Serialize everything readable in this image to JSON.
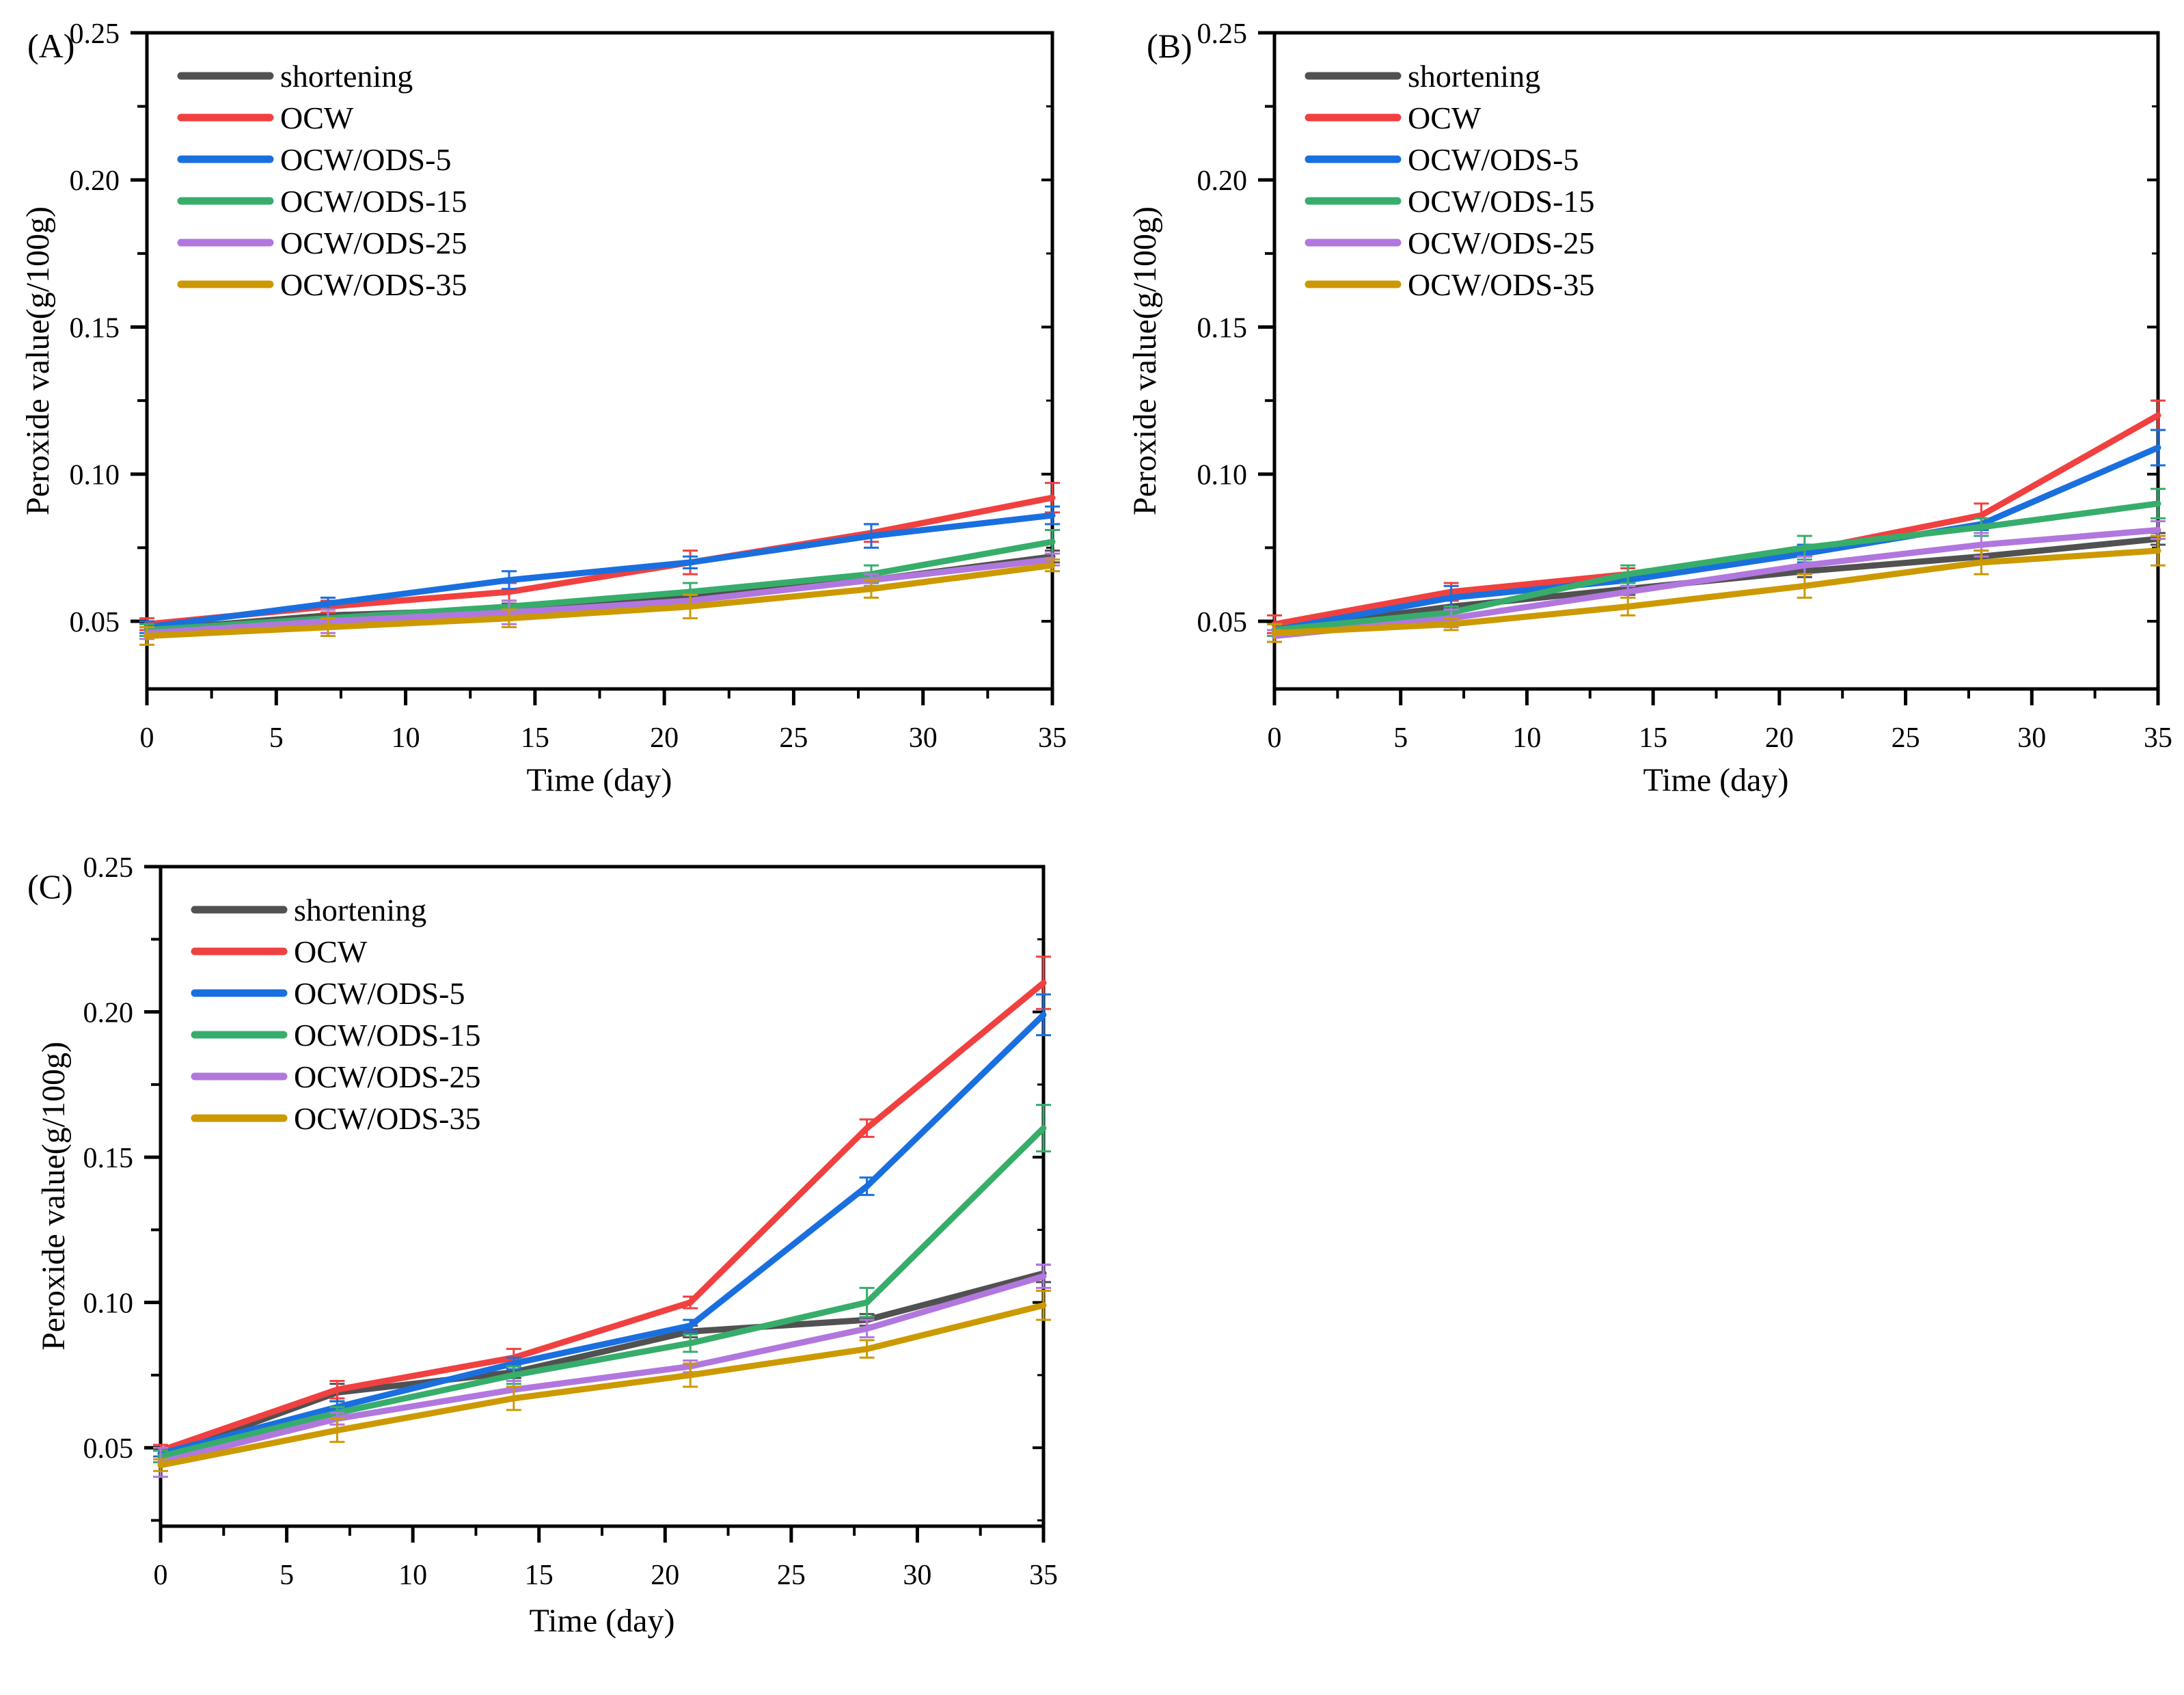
{
  "figure": {
    "background": "#ffffff",
    "x_axis_label": "Time (day)",
    "y_axis_label": "Peroxide value(g/100g)",
    "series_names": [
      "shortening",
      "OCW",
      "OCW/ODS-5",
      "OCW/ODS-15",
      "OCW/ODS-25",
      "OCW/ODS-35"
    ],
    "colors": {
      "shortening": "#515151",
      "OCW": "#F14040",
      "OCW/ODS-5": "#1A6FDF",
      "OCW/ODS-15": "#37AD6B",
      "OCW/ODS-25": "#B177DE",
      "OCW/ODS-35": "#CC9900"
    },
    "axis_color": "#000000",
    "tick_label_format": "0.00"
  },
  "chart_data": [
    {
      "type": "line",
      "panel": "(A)",
      "xlabel": "Time (day)",
      "ylabel": "Peroxide value(g/100g)",
      "x": [
        0,
        7,
        14,
        21,
        28,
        35
      ],
      "xlim": [
        0,
        35
      ],
      "ylim": [
        0.027,
        0.25
      ],
      "xticks": [
        0,
        5,
        10,
        15,
        20,
        25,
        30,
        35
      ],
      "yticks": [
        0.05,
        0.1,
        0.15,
        0.2,
        0.25
      ],
      "ytick_labels": [
        "0.05",
        "0.10",
        "0.15",
        "0.20",
        "0.25"
      ],
      "grid": false,
      "legend_position": "top-left",
      "series": [
        {
          "name": "shortening",
          "color": "#515151",
          "values": [
            0.047,
            0.052,
            0.054,
            0.058,
            0.064,
            0.072
          ],
          "errors": [
            0.002,
            0.002,
            0.002,
            0.002,
            0.002,
            0.002
          ]
        },
        {
          "name": "OCW",
          "color": "#F14040",
          "values": [
            0.049,
            0.055,
            0.06,
            0.07,
            0.08,
            0.092
          ],
          "errors": [
            0.002,
            0.002,
            0.003,
            0.004,
            0.003,
            0.005
          ]
        },
        {
          "name": "OCW/ODS-5",
          "color": "#1A6FDF",
          "values": [
            0.048,
            0.056,
            0.064,
            0.07,
            0.079,
            0.086
          ],
          "errors": [
            0.002,
            0.002,
            0.003,
            0.002,
            0.004,
            0.003
          ]
        },
        {
          "name": "OCW/ODS-15",
          "color": "#37AD6B",
          "values": [
            0.047,
            0.051,
            0.055,
            0.06,
            0.066,
            0.077
          ],
          "errors": [
            0.002,
            0.003,
            0.002,
            0.003,
            0.003,
            0.004
          ]
        },
        {
          "name": "OCW/ODS-25",
          "color": "#B177DE",
          "values": [
            0.046,
            0.05,
            0.053,
            0.057,
            0.064,
            0.071
          ],
          "errors": [
            0.002,
            0.004,
            0.004,
            0.002,
            0.002,
            0.002
          ]
        },
        {
          "name": "OCW/ODS-35",
          "color": "#CC9900",
          "values": [
            0.045,
            0.048,
            0.051,
            0.055,
            0.061,
            0.069
          ],
          "errors": [
            0.003,
            0.003,
            0.003,
            0.004,
            0.003,
            0.002
          ]
        }
      ]
    },
    {
      "type": "line",
      "panel": "(B)",
      "xlabel": "Time (day)",
      "ylabel": "Peroxide value(g/100g)",
      "x": [
        0,
        7,
        14,
        21,
        28,
        35
      ],
      "xlim": [
        0,
        35
      ],
      "ylim": [
        0.027,
        0.25
      ],
      "xticks": [
        0,
        5,
        10,
        15,
        20,
        25,
        30,
        35
      ],
      "yticks": [
        0.05,
        0.1,
        0.15,
        0.2,
        0.25
      ],
      "ytick_labels": [
        "0.05",
        "0.10",
        "0.15",
        "0.20",
        "0.25"
      ],
      "grid": false,
      "legend_position": "top-left",
      "series": [
        {
          "name": "shortening",
          "color": "#515151",
          "values": [
            0.047,
            0.055,
            0.061,
            0.067,
            0.072,
            0.078
          ],
          "errors": [
            0.002,
            0.002,
            0.002,
            0.002,
            0.002,
            0.002
          ]
        },
        {
          "name": "OCW",
          "color": "#F14040",
          "values": [
            0.049,
            0.06,
            0.066,
            0.074,
            0.086,
            0.12
          ],
          "errors": [
            0.003,
            0.003,
            0.002,
            0.002,
            0.004,
            0.005
          ]
        },
        {
          "name": "OCW/ODS-5",
          "color": "#1A6FDF",
          "values": [
            0.047,
            0.058,
            0.064,
            0.073,
            0.083,
            0.109
          ],
          "errors": [
            0.002,
            0.004,
            0.002,
            0.003,
            0.002,
            0.006
          ]
        },
        {
          "name": "OCW/ODS-15",
          "color": "#37AD6B",
          "values": [
            0.047,
            0.053,
            0.066,
            0.075,
            0.082,
            0.09
          ],
          "errors": [
            0.002,
            0.002,
            0.003,
            0.004,
            0.003,
            0.005
          ]
        },
        {
          "name": "OCW/ODS-25",
          "color": "#B177DE",
          "values": [
            0.045,
            0.051,
            0.06,
            0.069,
            0.076,
            0.081
          ],
          "errors": [
            0.002,
            0.003,
            0.002,
            0.003,
            0.004,
            0.003
          ]
        },
        {
          "name": "OCW/ODS-35",
          "color": "#CC9900",
          "values": [
            0.046,
            0.049,
            0.055,
            0.062,
            0.07,
            0.074
          ],
          "errors": [
            0.003,
            0.002,
            0.003,
            0.004,
            0.004,
            0.005
          ]
        }
      ]
    },
    {
      "type": "line",
      "panel": "(C)",
      "xlabel": "Time (day)",
      "ylabel": "Peroxide value(g/100g)",
      "x": [
        0,
        7,
        14,
        21,
        28,
        35
      ],
      "xlim": [
        0,
        35
      ],
      "ylim": [
        0.023,
        0.25
      ],
      "xticks": [
        0,
        5,
        10,
        15,
        20,
        25,
        30,
        35
      ],
      "yticks": [
        0.05,
        0.1,
        0.15,
        0.2,
        0.25
      ],
      "ytick_labels": [
        "0.05",
        "0.10",
        "0.15",
        "0.20",
        "0.25"
      ],
      "grid": false,
      "legend_position": "top-left",
      "series": [
        {
          "name": "shortening",
          "color": "#515151",
          "values": [
            0.047,
            0.069,
            0.076,
            0.09,
            0.094,
            0.11
          ],
          "errors": [
            0.002,
            0.003,
            0.002,
            0.002,
            0.002,
            0.003
          ]
        },
        {
          "name": "OCW",
          "color": "#F14040",
          "values": [
            0.049,
            0.07,
            0.081,
            0.1,
            0.16,
            0.21
          ],
          "errors": [
            0.002,
            0.003,
            0.003,
            0.002,
            0.003,
            0.009
          ]
        },
        {
          "name": "OCW/ODS-5",
          "color": "#1A6FDF",
          "values": [
            0.048,
            0.064,
            0.079,
            0.092,
            0.14,
            0.199
          ],
          "errors": [
            0.001,
            0.002,
            0.002,
            0.002,
            0.003,
            0.007
          ]
        },
        {
          "name": "OCW/ODS-15",
          "color": "#37AD6B",
          "values": [
            0.047,
            0.062,
            0.075,
            0.086,
            0.1,
            0.16
          ],
          "errors": [
            0.002,
            0.002,
            0.003,
            0.003,
            0.005,
            0.008
          ]
        },
        {
          "name": "OCW/ODS-25",
          "color": "#B177DE",
          "values": [
            0.045,
            0.06,
            0.07,
            0.078,
            0.091,
            0.109
          ],
          "errors": [
            0.005,
            0.002,
            0.003,
            0.002,
            0.003,
            0.004
          ]
        },
        {
          "name": "OCW/ODS-35",
          "color": "#CC9900",
          "values": [
            0.044,
            0.056,
            0.067,
            0.075,
            0.084,
            0.099
          ],
          "errors": [
            0.002,
            0.004,
            0.004,
            0.004,
            0.003,
            0.005
          ]
        }
      ]
    }
  ]
}
